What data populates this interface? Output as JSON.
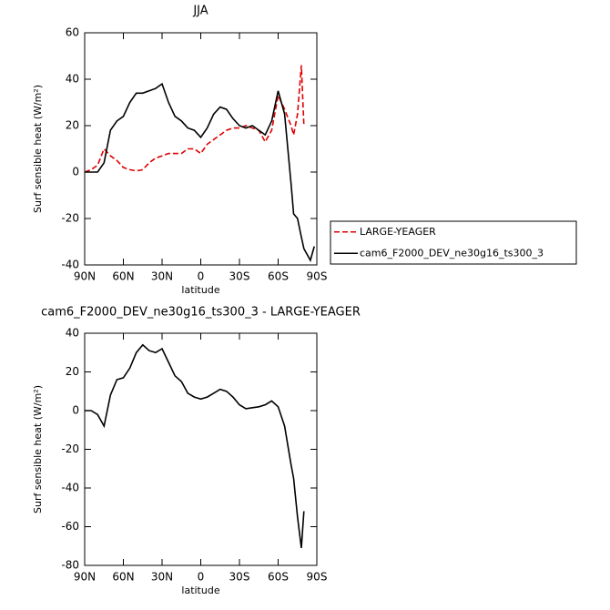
{
  "chart_data": [
    {
      "type": "line",
      "title": "JJA",
      "xlabel": "latitude",
      "ylabel": "Surf sensible heat (W/m²)",
      "x": [
        90,
        85,
        80,
        75,
        70,
        65,
        60,
        55,
        50,
        45,
        40,
        35,
        30,
        25,
        20,
        15,
        10,
        5,
        0,
        -5,
        -10,
        -15,
        -20,
        -25,
        -30,
        -35,
        -40,
        -45,
        -50,
        -55,
        -60,
        -65,
        -70,
        -72,
        -75,
        -78,
        -80,
        -85,
        -88
      ],
      "xlim": [
        90,
        -90
      ],
      "xticks": [
        {
          "value": 90,
          "label": "90N"
        },
        {
          "value": 60,
          "label": "60N"
        },
        {
          "value": 30,
          "label": "30N"
        },
        0,
        {
          "value": -30,
          "label": "30S"
        },
        {
          "value": -60,
          "label": "60S"
        },
        {
          "value": -90,
          "label": "90S"
        }
      ],
      "ylim": [
        -40,
        60
      ],
      "yticks": [
        -40,
        -20,
        0,
        20,
        40,
        60
      ],
      "legend": "right",
      "series": [
        {
          "name": "LARGE-YEAGER",
          "color": "#e00000",
          "linestyle": "dashed",
          "values": [
            0,
            1,
            3,
            10,
            7,
            5,
            2,
            1,
            0.5,
            1,
            4,
            6,
            7,
            8,
            8,
            8,
            10,
            10,
            8,
            12,
            14,
            16,
            18,
            19,
            19,
            20,
            19,
            18,
            13,
            18,
            33,
            27,
            20,
            16,
            25,
            46,
            20,
            null,
            null
          ]
        },
        {
          "name": "cam6_F2000_DEV_ne30g16_ts300_3",
          "color": "#000000",
          "linestyle": "solid",
          "values": [
            0,
            0,
            0,
            4,
            18,
            22,
            24,
            30,
            34,
            34,
            35,
            36,
            38,
            30,
            24,
            22,
            19,
            18,
            15,
            19,
            25,
            28,
            27,
            23,
            20,
            19,
            20,
            18,
            16,
            22,
            35,
            25,
            -5,
            -18,
            -20,
            -28,
            -33,
            -38,
            -32
          ]
        }
      ]
    },
    {
      "type": "line",
      "title": "cam6_F2000_DEV_ne30g16_ts300_3 - LARGE-YEAGER",
      "xlabel": "latitude",
      "ylabel": "Surf sensible heat (W/m²)",
      "x": [
        90,
        85,
        80,
        75,
        70,
        65,
        60,
        55,
        50,
        45,
        40,
        35,
        30,
        25,
        20,
        15,
        10,
        5,
        0,
        -5,
        -10,
        -15,
        -20,
        -25,
        -30,
        -35,
        -40,
        -45,
        -50,
        -55,
        -60,
        -65,
        -70,
        -72,
        -75,
        -78,
        -80,
        -85,
        -88
      ],
      "xlim": [
        90,
        -90
      ],
      "xticks": [
        {
          "value": 90,
          "label": "90N"
        },
        {
          "value": 60,
          "label": "60N"
        },
        {
          "value": 30,
          "label": "30N"
        },
        0,
        {
          "value": -30,
          "label": "30S"
        },
        {
          "value": -60,
          "label": "60S"
        },
        {
          "value": -90,
          "label": "90S"
        }
      ],
      "ylim": [
        -80,
        40
      ],
      "yticks": [
        -80,
        -60,
        -40,
        -20,
        0,
        20,
        40
      ],
      "color": "#000000",
      "values": [
        0,
        0,
        -2,
        -8,
        8,
        16,
        17,
        22,
        30,
        34,
        31,
        30,
        32,
        25,
        18,
        15,
        9,
        7,
        6,
        7,
        9,
        11,
        10,
        7,
        3,
        1,
        1.5,
        2,
        3,
        5,
        2,
        -8,
        -28,
        -35,
        -55,
        -71,
        -52,
        null,
        null
      ]
    }
  ]
}
